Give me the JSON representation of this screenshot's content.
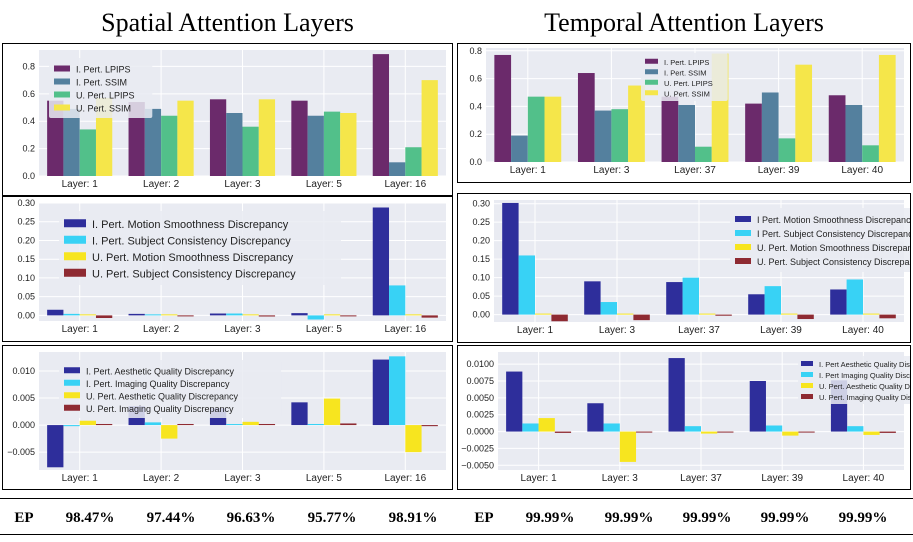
{
  "titles": {
    "left": "Spatial Attention Layers",
    "right": "Temporal Attention Layers"
  },
  "colors": {
    "dark_purple": "#6b2a6b",
    "steel_blue": "#54809e",
    "green": "#52c08a",
    "yellow": "#f5e64a",
    "navy": "#2e2e9b",
    "cyan": "#38d2f5",
    "gold": "#f7e51f",
    "maroon": "#8e2a32",
    "plot_bg": "#e9ebf2"
  },
  "chart_data": [
    {
      "id": "spatial-perceptual",
      "type": "bar",
      "categories": [
        "Layer: 1",
        "Layer: 2",
        "Layer: 3",
        "Layer: 5",
        "Layer: 16"
      ],
      "ylim": [
        0,
        0.92
      ],
      "yticks": [
        0,
        0.2,
        0.4,
        0.6,
        0.8
      ],
      "yticklabels": [
        "0.0",
        "0.2",
        "0.4",
        "0.6",
        "0.8"
      ],
      "legend_position": "top-left",
      "series": [
        {
          "name": "I. Pert. LPIPS",
          "color": "#6b2a6b",
          "values": [
            0.55,
            0.54,
            0.56,
            0.55,
            0.89
          ]
        },
        {
          "name": "I. Pert. SSIM",
          "color": "#54809e",
          "values": [
            0.49,
            0.49,
            0.46,
            0.44,
            0.1
          ]
        },
        {
          "name": "U. Pert. LPIPS",
          "color": "#52c08a",
          "values": [
            0.34,
            0.44,
            0.36,
            0.47,
            0.21
          ]
        },
        {
          "name": "U. Pert. SSIM",
          "color": "#f5e64a",
          "values": [
            0.57,
            0.55,
            0.56,
            0.46,
            0.7
          ]
        }
      ]
    },
    {
      "id": "temporal-perceptual",
      "type": "bar",
      "categories": [
        "Layer: 1",
        "Layer: 3",
        "Layer: 37",
        "Layer: 39",
        "Layer: 40"
      ],
      "ylim": [
        0,
        0.82
      ],
      "yticks": [
        0,
        0.2,
        0.4,
        0.6,
        0.8
      ],
      "yticklabels": [
        "0.0",
        "0.2",
        "0.4",
        "0.6",
        "0.8"
      ],
      "legend_position": "top-center",
      "series": [
        {
          "name": "I. Pert. LPIPS",
          "color": "#6b2a6b",
          "values": [
            0.77,
            0.64,
            0.47,
            0.42,
            0.48
          ]
        },
        {
          "name": "I. Pert. SSIM",
          "color": "#54809e",
          "values": [
            0.19,
            0.37,
            0.41,
            0.5,
            0.41
          ]
        },
        {
          "name": "U. Pert. LPIPS",
          "color": "#52c08a",
          "values": [
            0.47,
            0.38,
            0.11,
            0.17,
            0.12
          ]
        },
        {
          "name": "U. Pert. SSIM",
          "color": "#f5e64a",
          "values": [
            0.47,
            0.55,
            0.78,
            0.7,
            0.77
          ]
        }
      ]
    },
    {
      "id": "spatial-consistency",
      "type": "bar",
      "categories": [
        "Layer: 1",
        "Layer: 2",
        "Layer: 3",
        "Layer: 5",
        "Layer: 16"
      ],
      "ylim": [
        -0.015,
        0.3
      ],
      "yticks": [
        0,
        0.05,
        0.1,
        0.15,
        0.2,
        0.25,
        0.3
      ],
      "yticklabels": [
        "0.00",
        "0.05",
        "0.10",
        "0.15",
        "0.20",
        "0.25",
        "0.30"
      ],
      "legend_position": "top-left",
      "series": [
        {
          "name": "I. Pert. Motion Smoothness Discrepancy",
          "color": "#2e2e9b",
          "values": [
            0.015,
            0.004,
            0.005,
            0.006,
            0.288
          ]
        },
        {
          "name": "I. Pert. Subject Consistency Discrepancy",
          "color": "#38d2f5",
          "values": [
            0.004,
            0.002,
            0.005,
            -0.011,
            0.08
          ]
        },
        {
          "name": "U. Pert. Motion Smoothness Discrepancy",
          "color": "#f7e51f",
          "values": [
            0.0,
            0.0,
            0.0,
            0.0,
            0.0
          ]
        },
        {
          "name": "U. Pert. Subject Consistency Discrepancy",
          "color": "#8e2a32",
          "values": [
            -0.007,
            -0.002,
            -0.003,
            -0.002,
            -0.006
          ]
        }
      ]
    },
    {
      "id": "temporal-consistency",
      "type": "bar",
      "categories": [
        "Layer: 1",
        "Layer: 3",
        "Layer: 37",
        "Layer: 39",
        "Layer: 40"
      ],
      "ylim": [
        -0.02,
        0.31
      ],
      "yticks": [
        0,
        0.05,
        0.1,
        0.15,
        0.2,
        0.25,
        0.3
      ],
      "yticklabels": [
        "0.00",
        "0.05",
        "0.10",
        "0.15",
        "0.20",
        "0.25",
        "0.30"
      ],
      "legend_position": "top-right",
      "series": [
        {
          "name": "I Pert. Motion Smoothness Discrepancy",
          "color": "#2e2e9b",
          "values": [
            0.302,
            0.09,
            0.088,
            0.055,
            0.068
          ]
        },
        {
          "name": "I Pert. Subject Consistency Discrepancy",
          "color": "#38d2f5",
          "values": [
            0.16,
            0.034,
            0.1,
            0.077,
            0.095
          ]
        },
        {
          "name": "U. Pert. Motion Smoothness Discrepancy",
          "color": "#f7e51f",
          "values": [
            0.0,
            0.0,
            0.0,
            0.0,
            0.0
          ]
        },
        {
          "name": "U. Pert. Subject Consistency Discrepancy",
          "color": "#8e2a32",
          "values": [
            -0.018,
            -0.015,
            -0.003,
            -0.012,
            -0.01
          ]
        }
      ]
    },
    {
      "id": "spatial-quality",
      "type": "bar",
      "categories": [
        "Layer: 1",
        "Layer: 2",
        "Layer: 3",
        "Layer: 5",
        "Layer: 16"
      ],
      "ylim": [
        -0.0083,
        0.0135
      ],
      "yticks": [
        -0.005,
        0,
        0.005,
        0.01
      ],
      "yticklabels": [
        "−0.005",
        "0.000",
        "0.005",
        "0.010"
      ],
      "legend_position": "top-left",
      "series": [
        {
          "name": "I. Pert. Aesthetic Quality Discrepancy",
          "color": "#2e2e9b",
          "values": [
            -0.0078,
            0.0035,
            0.0031,
            0.0042,
            0.0121
          ]
        },
        {
          "name": "I. Pert. Imaging Quality Discrepancy",
          "color": "#38d2f5",
          "values": [
            -0.0002,
            0.0005,
            0.0,
            0.0002,
            0.0127
          ]
        },
        {
          "name": "U. Pert. Aesthetic Quality Discrepancy",
          "color": "#f7e51f",
          "values": [
            0.0008,
            -0.0025,
            0.0006,
            0.0049,
            -0.005
          ]
        },
        {
          "name": "U. Pert. Imaging Quality Discrepancy",
          "color": "#8e2a32",
          "values": [
            0.0002,
            0.0002,
            0.0002,
            0.0003,
            -0.0002
          ]
        }
      ]
    },
    {
      "id": "temporal-quality",
      "type": "bar",
      "categories": [
        "Layer: 1",
        "Layer: 3",
        "Layer: 37",
        "Layer: 39",
        "Layer: 40"
      ],
      "ylim": [
        -0.0057,
        0.0118
      ],
      "yticks": [
        -0.005,
        -0.0025,
        0,
        0.0025,
        0.005,
        0.0075,
        0.01
      ],
      "yticklabels": [
        "−0.0050",
        "−0.0025",
        "0.0000",
        "0.0025",
        "0.0050",
        "0.0075",
        "0.0100"
      ],
      "legend_position": "top-right",
      "series": [
        {
          "name": "I. Pert Aesthetic Quality Discrepancy",
          "color": "#2e2e9b",
          "values": [
            0.0089,
            0.0042,
            0.0109,
            0.0075,
            0.0076
          ]
        },
        {
          "name": "I. Pert Imaging Quality Discrepancy",
          "color": "#38d2f5",
          "values": [
            0.0012,
            0.0012,
            0.0008,
            0.0009,
            0.0008
          ]
        },
        {
          "name": "U. Pert. Aesthetic Quality Discrepancy",
          "color": "#f7e51f",
          "values": [
            0.002,
            -0.0045,
            -0.0003,
            -0.0006,
            -0.0005
          ]
        },
        {
          "name": "U. Pert. Imaging Quality Discrepancy",
          "color": "#8e2a32",
          "values": [
            -0.0002,
            -0.0001,
            -0.0001,
            -0.0001,
            -0.0002
          ]
        }
      ]
    }
  ],
  "ep": {
    "label": "EP",
    "spatial": [
      "98.47%",
      "97.44%",
      "96.63%",
      "95.77%",
      "98.91%"
    ],
    "temporal": [
      "99.99%",
      "99.99%",
      "99.99%",
      "99.99%",
      "99.99%"
    ]
  }
}
